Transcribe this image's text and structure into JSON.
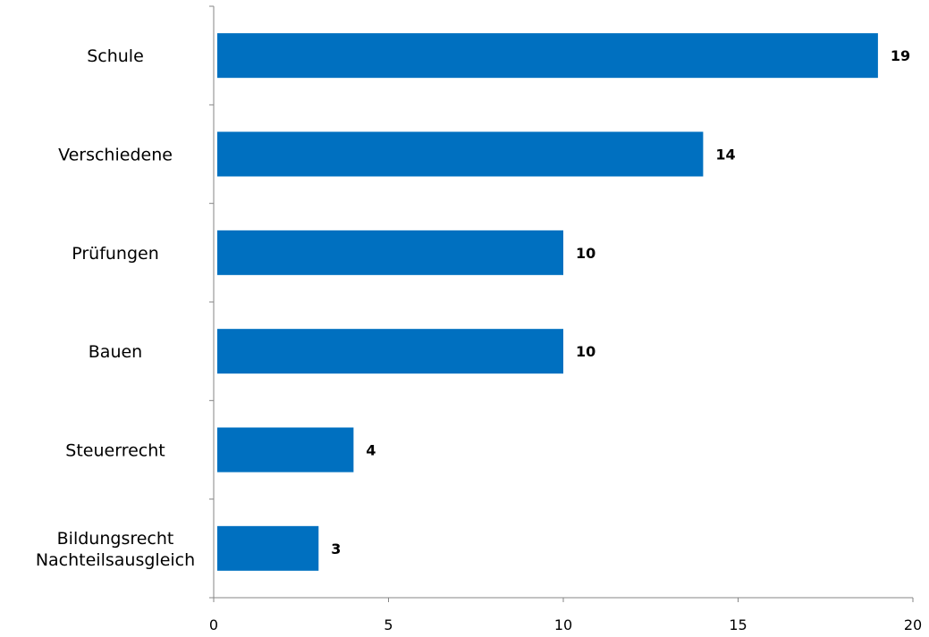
{
  "chart_data": {
    "type": "bar",
    "orientation": "horizontal",
    "title": "",
    "xlabel": "",
    "ylabel": "",
    "categories": [
      [
        "Schule"
      ],
      [
        "Verschiedene"
      ],
      [
        "Prüfungen"
      ],
      [
        "Bauen"
      ],
      [
        "Steuerrecht"
      ],
      [
        "Bildungsrecht",
        "Nachteilsausgleich"
      ]
    ],
    "values": [
      19,
      14,
      10,
      10,
      4,
      3
    ],
    "data_labels": [
      "19",
      "14",
      "10",
      "10",
      "4",
      "3"
    ],
    "xlim": [
      0,
      20
    ],
    "x_ticks": [
      "0",
      "5",
      "10",
      "15",
      "20"
    ],
    "grid": false,
    "legend": "none",
    "bar_color": "#0070C0",
    "axis_color": "#868686"
  }
}
